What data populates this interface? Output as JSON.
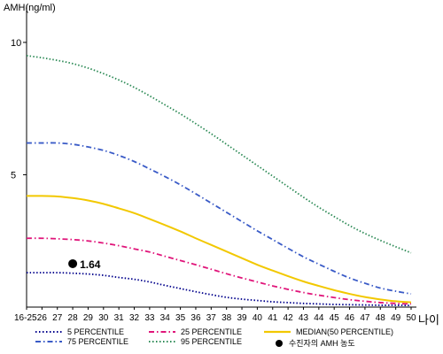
{
  "chart_data": {
    "type": "line",
    "ylabel": "AMH(ng/ml)",
    "x_unit_label": "나이",
    "categories": [
      "16-25",
      "26",
      "27",
      "28",
      "29",
      "30",
      "31",
      "32",
      "33",
      "34",
      "35",
      "36",
      "37",
      "38",
      "39",
      "40",
      "41",
      "42",
      "43",
      "44",
      "45",
      "46",
      "47",
      "48",
      "49",
      "50"
    ],
    "yticks": [
      "10",
      "5"
    ],
    "ylim": [
      0,
      11
    ],
    "series": [
      {
        "name": "5 PERCENTILE",
        "color": "#00008B",
        "style": "dotted",
        "values": [
          1.3,
          1.3,
          1.3,
          1.28,
          1.25,
          1.2,
          1.12,
          1.05,
          0.95,
          0.82,
          0.7,
          0.58,
          0.47,
          0.37,
          0.3,
          0.25,
          0.2,
          0.17,
          0.14,
          0.12,
          0.1,
          0.09,
          0.08,
          0.07,
          0.07,
          0.06
        ]
      },
      {
        "name": "25 PERCENTILE",
        "color": "#E0157A",
        "style": "dashdot",
        "values": [
          2.6,
          2.6,
          2.58,
          2.55,
          2.5,
          2.42,
          2.32,
          2.2,
          2.08,
          1.92,
          1.76,
          1.6,
          1.43,
          1.26,
          1.1,
          0.95,
          0.8,
          0.67,
          0.55,
          0.45,
          0.36,
          0.28,
          0.22,
          0.17,
          0.14,
          0.12
        ]
      },
      {
        "name": "MEDIAN(50 PERCENTILE)",
        "color": "#F2C800",
        "style": "solid",
        "values": [
          4.2,
          4.2,
          4.18,
          4.12,
          4.03,
          3.9,
          3.73,
          3.55,
          3.33,
          3.1,
          2.86,
          2.6,
          2.35,
          2.1,
          1.85,
          1.6,
          1.38,
          1.17,
          0.97,
          0.8,
          0.64,
          0.5,
          0.38,
          0.29,
          0.22,
          0.18
        ]
      },
      {
        "name": "75 PERCENTILE",
        "color": "#3A5BC7",
        "style": "dashdot",
        "values": [
          6.2,
          6.2,
          6.2,
          6.15,
          6.05,
          5.92,
          5.73,
          5.5,
          5.22,
          4.93,
          4.62,
          4.28,
          3.93,
          3.58,
          3.23,
          2.88,
          2.55,
          2.22,
          1.9,
          1.62,
          1.35,
          1.1,
          0.9,
          0.72,
          0.6,
          0.5
        ]
      },
      {
        "name": "95 PERCENTILE",
        "color": "#2E8B57",
        "style": "dotted",
        "values": [
          9.5,
          9.42,
          9.32,
          9.2,
          9.03,
          8.82,
          8.58,
          8.3,
          7.98,
          7.64,
          7.3,
          6.93,
          6.55,
          6.15,
          5.75,
          5.35,
          4.95,
          4.55,
          4.15,
          3.77,
          3.42,
          3.08,
          2.78,
          2.52,
          2.28,
          2.05
        ]
      }
    ],
    "marker": {
      "name": "수진자의 AMH 농도",
      "x": "28",
      "y": 1.64,
      "label": "1.64"
    },
    "grid": false,
    "legend_position": "bottom"
  }
}
